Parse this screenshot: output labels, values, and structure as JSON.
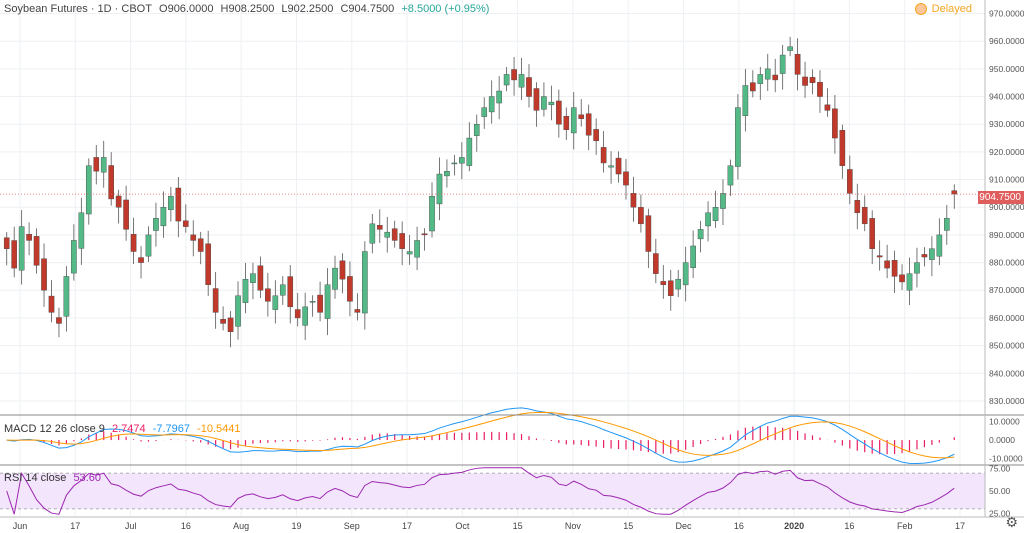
{
  "header": {
    "symbol": "Soybean Futures · 1D · CBOT",
    "open": "O906.0000",
    "high": "H908.2500",
    "low": "L902.2500",
    "close": "C904.7500",
    "change": "+8.5000 (+0.95%)",
    "delayed_label": "Delayed"
  },
  "macd_legend": {
    "name": "MACD 12 26 close 9",
    "v1": "2.7474",
    "v2": "-7.7967",
    "v3": "-10.5441"
  },
  "rsi_legend": {
    "name": "RSI 14 close",
    "value": "53.60"
  },
  "last_price_label": "904.7500",
  "colors": {
    "up": "#26a69a",
    "down": "#ef5350",
    "up_fill": "#53b987",
    "down_fill": "#c0392b",
    "macd_line": "#2196f3",
    "signal_line": "#ff9800",
    "histogram": "#e91e63",
    "rsi_line": "#9c27b0",
    "rsi_band": "#f3e5fc"
  },
  "chart_data": [
    {
      "type": "candlestick",
      "title": "Soybean Futures · 1D · CBOT",
      "ylim": [
        826,
        972
      ],
      "y_ticks": [
        "970.0000",
        "960.0000",
        "950.0000",
        "940.0000",
        "930.0000",
        "920.0000",
        "910.0000",
        "900.0000",
        "890.0000",
        "880.0000",
        "870.0000",
        "860.0000",
        "850.0000",
        "840.0000",
        "830.0000"
      ],
      "x_tick_labels": [
        "Jun",
        "17",
        "Jul",
        "16",
        "Aug",
        "19",
        "Sep",
        "17",
        "Oct",
        "15",
        "Nov",
        "15",
        "Dec",
        "16",
        "2020",
        "16",
        "Feb",
        "17"
      ],
      "last_price": 904.75,
      "close_approx": [
        885,
        878,
        893,
        888,
        879,
        870,
        862,
        858,
        875,
        888,
        898,
        915,
        913,
        918,
        903,
        900,
        892,
        884,
        880,
        890,
        896,
        900,
        904,
        895,
        893,
        888,
        884,
        872,
        862,
        858,
        855,
        868,
        874,
        876,
        870,
        866,
        868,
        872,
        864,
        860,
        864,
        866,
        862,
        872,
        878,
        874,
        866,
        862,
        884,
        894,
        892,
        891,
        888,
        885,
        884,
        888,
        890,
        904,
        912,
        913,
        916,
        918,
        925,
        930,
        936,
        940,
        942,
        948,
        946,
        948,
        940,
        935,
        940,
        938,
        930,
        928,
        936,
        932,
        926,
        924,
        916,
        915,
        912,
        908,
        900,
        894,
        884,
        876,
        872,
        868,
        874,
        880,
        886,
        892,
        898,
        900,
        905,
        915,
        936,
        944,
        942,
        948,
        950,
        946,
        955,
        958,
        948,
        944,
        945,
        940,
        935,
        925,
        915,
        905,
        898,
        894,
        885,
        882,
        878,
        875,
        873,
        876,
        880,
        882,
        885,
        890,
        896,
        904.75
      ]
    },
    {
      "type": "line",
      "title": "MACD 12 26 close 9",
      "ylim": [
        -13,
        12
      ],
      "y_ticks": [
        "10.0000",
        "0.0000",
        "-10.0000"
      ]
    },
    {
      "type": "line",
      "title": "RSI 14 close",
      "ylim": [
        22,
        78
      ],
      "y_ticks": [
        "75.00",
        "50.00",
        "25.00"
      ],
      "bands": [
        30,
        70
      ]
    }
  ]
}
